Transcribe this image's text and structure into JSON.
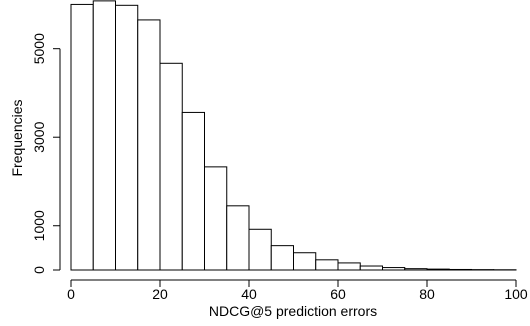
{
  "chart_data": {
    "type": "bar",
    "title": "",
    "xlabel": "NDCG@5 prediction errors",
    "ylabel": "Frequencies",
    "bin_edges": [
      0,
      5,
      10,
      15,
      20,
      25,
      30,
      35,
      40,
      45,
      50,
      55,
      60,
      65,
      70,
      75,
      80,
      85,
      90,
      95,
      100
    ],
    "values": [
      6000,
      6080,
      5980,
      5650,
      4670,
      3560,
      2330,
      1450,
      920,
      550,
      390,
      230,
      160,
      90,
      55,
      30,
      20,
      12,
      8,
      5
    ],
    "xlim": [
      0,
      100
    ],
    "ylim": [
      0,
      6100
    ],
    "x_ticks": [
      0,
      20,
      40,
      60,
      80,
      100
    ],
    "y_ticks": [
      0,
      1000,
      3000,
      5000
    ],
    "x_tick_labels": [
      "0",
      "20",
      "40",
      "60",
      "80",
      "100"
    ],
    "y_tick_labels": [
      "0",
      "1000",
      "3000",
      "5000"
    ],
    "grid": false,
    "colors": {
      "bar_fill": "#ffffff",
      "bar_stroke": "#000000",
      "axis": "#000000",
      "text": "#000000"
    }
  }
}
